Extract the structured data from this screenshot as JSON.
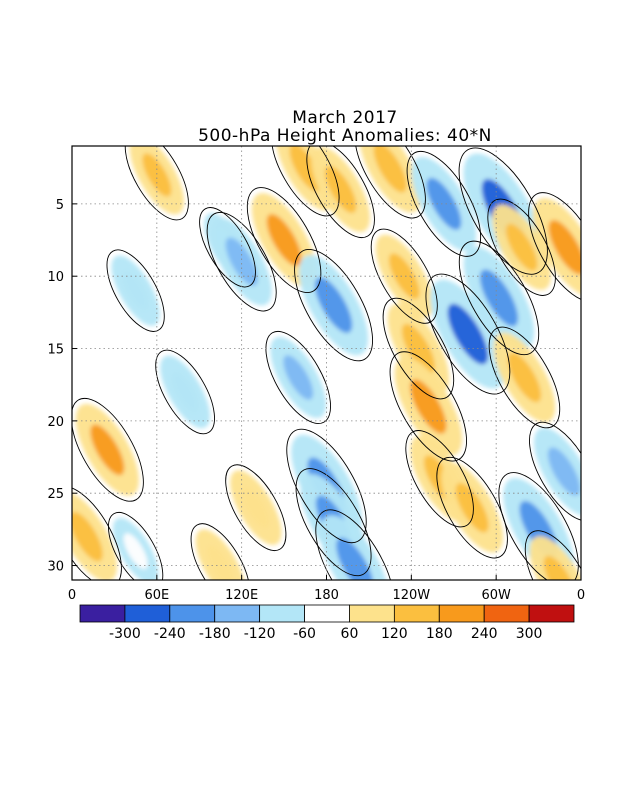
{
  "chart_data": {
    "type": "heatmap",
    "title": "March 2017",
    "subtitle": "500-hPa Height Anomalies: 40*N",
    "xlabel": "",
    "ylabel": "",
    "x_ticks": [
      "0",
      "60E",
      "120E",
      "180",
      "120W",
      "60W",
      "0"
    ],
    "x_tick_lon": [
      0,
      60,
      120,
      180,
      240,
      300,
      360
    ],
    "xlim": [
      0,
      360
    ],
    "y_ticks": [
      5,
      10,
      15,
      20,
      25,
      30
    ],
    "ylim": [
      1,
      31
    ],
    "y_reversed": true,
    "grid": "dotted",
    "colorbar": {
      "orientation": "horizontal",
      "labels": [
        "-300",
        "-240",
        "-180",
        "-120",
        "-60",
        "60",
        "120",
        "180",
        "240",
        "300"
      ],
      "levels": [
        -300,
        -240,
        -180,
        -120,
        -60,
        60,
        120,
        180,
        240,
        300
      ],
      "colors": [
        "#3a1fa0",
        "#1f5fd8",
        "#4d93ea",
        "#7db8f3",
        "#b3e6f7",
        "#ffffff",
        "#fde28c",
        "#fbbf3f",
        "#f89a1c",
        "#f06411",
        "#c01010"
      ]
    },
    "contour_label": "0",
    "features": [
      {
        "lon": 45,
        "day": 11,
        "value": -80
      },
      {
        "lon": 110,
        "day": 8,
        "value": -70
      },
      {
        "lon": 120,
        "day": 9,
        "value": -160
      },
      {
        "lon": 150,
        "day": 7.5,
        "value": 190
      },
      {
        "lon": 165,
        "day": 2.5,
        "value": 150
      },
      {
        "lon": 185,
        "day": 12,
        "value": -220
      },
      {
        "lon": 190,
        "day": 4,
        "value": 150
      },
      {
        "lon": 160,
        "day": 17,
        "value": -130
      },
      {
        "lon": 180,
        "day": 24.5,
        "value": -230
      },
      {
        "lon": 185,
        "day": 27,
        "value": -200
      },
      {
        "lon": 200,
        "day": 30,
        "value": -220
      },
      {
        "lon": 225,
        "day": 2.5,
        "value": 170
      },
      {
        "lon": 235,
        "day": 10,
        "value": 140
      },
      {
        "lon": 245,
        "day": 15,
        "value": 170
      },
      {
        "lon": 252,
        "day": 19,
        "value": 210
      },
      {
        "lon": 260,
        "day": 24,
        "value": 150
      },
      {
        "lon": 263,
        "day": 5,
        "value": -190
      },
      {
        "lon": 280,
        "day": 14,
        "value": -260
      },
      {
        "lon": 283,
        "day": 26,
        "value": 170
      },
      {
        "lon": 305,
        "day": 5.5,
        "value": -290
      },
      {
        "lon": 302,
        "day": 11.5,
        "value": -230
      },
      {
        "lon": 318,
        "day": 8,
        "value": 150
      },
      {
        "lon": 320,
        "day": 17,
        "value": 170
      },
      {
        "lon": 330,
        "day": 27.5,
        "value": -230
      },
      {
        "lon": 350,
        "day": 8,
        "value": 210
      },
      {
        "lon": 348,
        "day": 23.5,
        "value": -160
      },
      {
        "lon": 60,
        "day": 3,
        "value": 120
      },
      {
        "lon": 25,
        "day": 22,
        "value": 180
      },
      {
        "lon": 10,
        "day": 28,
        "value": 170
      },
      {
        "lon": 130,
        "day": 26,
        "value": 100
      },
      {
        "lon": 80,
        "day": 18,
        "value": -90
      },
      {
        "lon": 105,
        "day": 30,
        "value": 90
      },
      {
        "lon": 345,
        "day": 31,
        "value": 160
      },
      {
        "lon": 45,
        "day": 29,
        "value": -60
      }
    ]
  }
}
